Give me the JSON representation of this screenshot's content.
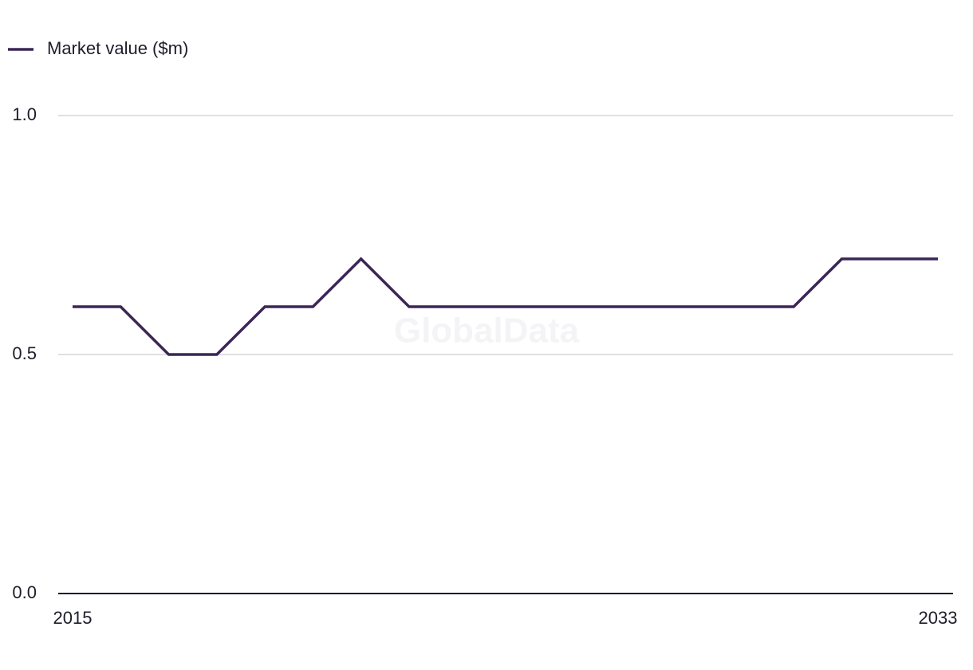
{
  "chart_data": {
    "type": "line",
    "x": [
      2015,
      2016,
      2017,
      2018,
      2019,
      2020,
      2021,
      2022,
      2023,
      2024,
      2025,
      2026,
      2027,
      2028,
      2029,
      2030,
      2031,
      2032,
      2033
    ],
    "series": [
      {
        "name": "Market value ($m)",
        "color": "#3b2656",
        "values": [
          0.6,
          0.6,
          0.5,
          0.5,
          0.6,
          0.6,
          0.7,
          0.6,
          0.6,
          0.6,
          0.6,
          0.6,
          0.6,
          0.6,
          0.6,
          0.6,
          0.7,
          0.7,
          0.7
        ]
      }
    ],
    "xlim": [
      2015,
      2033
    ],
    "xticks": [
      2015,
      2033
    ],
    "ylim": [
      0,
      1
    ],
    "yticks": [
      {
        "value": 0,
        "label": "0.0"
      },
      0.5,
      {
        "value": 1,
        "label": "1.0"
      }
    ],
    "grid": true,
    "legend": "top-left",
    "watermark": "GlobalData"
  }
}
